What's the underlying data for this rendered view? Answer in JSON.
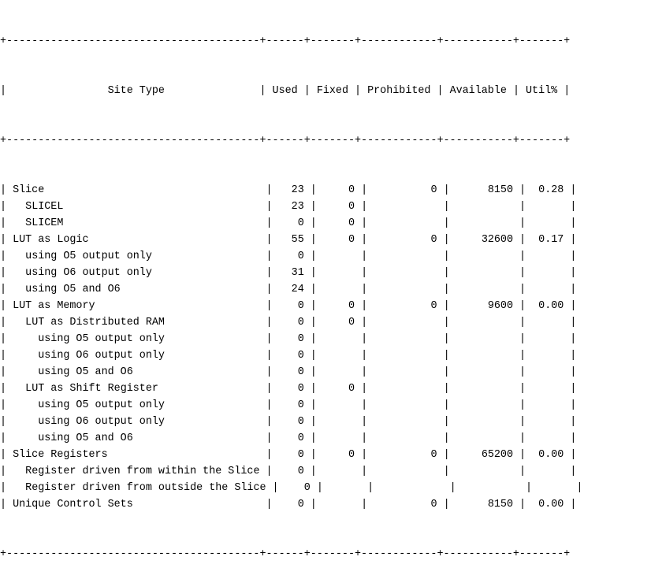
{
  "table": {
    "header": [
      "Site Type",
      "Used",
      "Fixed",
      "Prohibited",
      "Available",
      "Util%"
    ],
    "rows": [
      {
        "indent": 0,
        "site_type": "Slice",
        "used": "23",
        "fixed": "0",
        "prohibited": "0",
        "available": "8150",
        "util": "0.28"
      },
      {
        "indent": 1,
        "site_type": "SLICEL",
        "used": "23",
        "fixed": "0",
        "prohibited": "",
        "available": "",
        "util": ""
      },
      {
        "indent": 1,
        "site_type": "SLICEM",
        "used": "0",
        "fixed": "0",
        "prohibited": "",
        "available": "",
        "util": ""
      },
      {
        "indent": 0,
        "site_type": "LUT as Logic",
        "used": "55",
        "fixed": "0",
        "prohibited": "0",
        "available": "32600",
        "util": "0.17"
      },
      {
        "indent": 1,
        "site_type": "using O5 output only",
        "used": "0",
        "fixed": "",
        "prohibited": "",
        "available": "",
        "util": ""
      },
      {
        "indent": 1,
        "site_type": "using O6 output only",
        "used": "31",
        "fixed": "",
        "prohibited": "",
        "available": "",
        "util": ""
      },
      {
        "indent": 1,
        "site_type": "using O5 and O6",
        "used": "24",
        "fixed": "",
        "prohibited": "",
        "available": "",
        "util": ""
      },
      {
        "indent": 0,
        "site_type": "LUT as Memory",
        "used": "0",
        "fixed": "0",
        "prohibited": "0",
        "available": "9600",
        "util": "0.00"
      },
      {
        "indent": 1,
        "site_type": "LUT as Distributed RAM",
        "used": "0",
        "fixed": "0",
        "prohibited": "",
        "available": "",
        "util": ""
      },
      {
        "indent": 2,
        "site_type": "using O5 output only",
        "used": "0",
        "fixed": "",
        "prohibited": "",
        "available": "",
        "util": ""
      },
      {
        "indent": 2,
        "site_type": "using O6 output only",
        "used": "0",
        "fixed": "",
        "prohibited": "",
        "available": "",
        "util": ""
      },
      {
        "indent": 2,
        "site_type": "using O5 and O6",
        "used": "0",
        "fixed": "",
        "prohibited": "",
        "available": "",
        "util": ""
      },
      {
        "indent": 1,
        "site_type": "LUT as Shift Register",
        "used": "0",
        "fixed": "0",
        "prohibited": "",
        "available": "",
        "util": ""
      },
      {
        "indent": 2,
        "site_type": "using O5 output only",
        "used": "0",
        "fixed": "",
        "prohibited": "",
        "available": "",
        "util": ""
      },
      {
        "indent": 2,
        "site_type": "using O6 output only",
        "used": "0",
        "fixed": "",
        "prohibited": "",
        "available": "",
        "util": ""
      },
      {
        "indent": 2,
        "site_type": "using O5 and O6",
        "used": "0",
        "fixed": "",
        "prohibited": "",
        "available": "",
        "util": ""
      },
      {
        "indent": 0,
        "site_type": "Slice Registers",
        "used": "0",
        "fixed": "0",
        "prohibited": "0",
        "available": "65200",
        "util": "0.00"
      },
      {
        "indent": 1,
        "site_type": "Register driven from within the Slice",
        "used": "0",
        "fixed": "",
        "prohibited": "",
        "available": "",
        "util": ""
      },
      {
        "indent": 1,
        "site_type": "Register driven from outside the Slice",
        "used": "0",
        "fixed": "",
        "prohibited": "",
        "available": "",
        "util": ""
      },
      {
        "indent": 0,
        "site_type": "Unique Control Sets",
        "used": "0",
        "fixed": "",
        "prohibited": "0",
        "available": "8150",
        "util": "0.00"
      }
    ]
  }
}
